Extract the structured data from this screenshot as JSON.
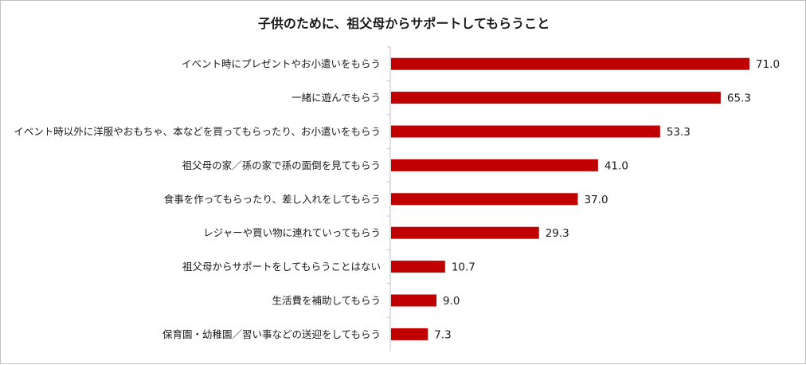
{
  "chart_data": {
    "type": "bar",
    "orientation": "horizontal",
    "title": "子供のために、祖父母からサポートしてもらうこと",
    "categories": [
      "イベント時にプレゼントやお小遣いをもらう",
      "一緒に遊んでもらう",
      "イベント時以外に洋服やおもちゃ、本などを買ってもらったり、お小遣いをもらう",
      "祖父母の家／孫の家で孫の面倒を見てもらう",
      "食事を作ってもらったり、差し入れをしてもらう",
      "レジャーや買い物に連れていってもらう",
      "祖父母からサポートをしてもらうことはない",
      "生活費を補助してもらう",
      "保育園・幼稚園／習い事などの送迎をしてもらう"
    ],
    "values": [
      71.0,
      65.3,
      53.3,
      41.0,
      37.0,
      29.3,
      10.7,
      9.0,
      7.3
    ],
    "value_labels": [
      "71.0",
      "65.3",
      "53.3",
      "41.0",
      "37.0",
      "29.3",
      "10.7",
      "9.0",
      "7.3"
    ],
    "xlim": [
      0,
      71
    ],
    "bar_color": "#c00000",
    "axis_color": "#bfbfbf",
    "grid": false,
    "legend": "none"
  }
}
